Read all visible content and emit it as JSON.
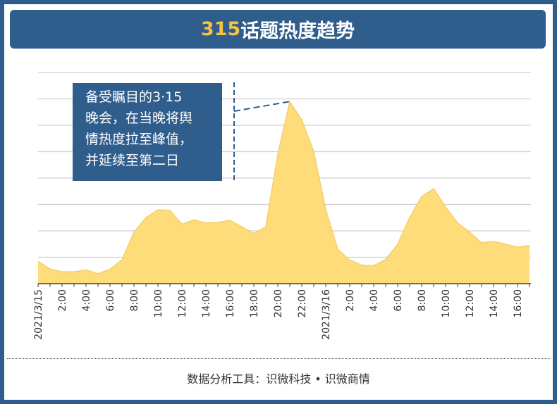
{
  "header": {
    "title_number": "315",
    "title_text": "话题热度趋势"
  },
  "annotation": {
    "lines": [
      "备受瞩目的3·15",
      "晚会，在当晚将舆",
      "情热度拉至峰值，",
      "并延续至第二日"
    ]
  },
  "footer": {
    "source": "数据分析工具：识微科技 • 识微商情"
  },
  "colors": {
    "frame": "#2f5d8c",
    "title_accent": "#f5c242",
    "area_fill": "#ffdc7a",
    "grid": "#d0d0d0",
    "dashed_line": "#2f5d8c"
  },
  "chart_data": {
    "type": "area",
    "title": "315话题热度趋势",
    "xlabel": "",
    "ylabel": "",
    "ylim": [
      0,
      8
    ],
    "grid": true,
    "legend": "none",
    "x": [
      "2021/3/15 0:00",
      "1:00",
      "2:00",
      "3:00",
      "4:00",
      "5:00",
      "6:00",
      "7:00",
      "8:00",
      "9:00",
      "10:00",
      "11:00",
      "12:00",
      "13:00",
      "14:00",
      "15:00",
      "16:00",
      "17:00",
      "18:00",
      "19:00",
      "20:00",
      "21:00",
      "22:00",
      "23:00",
      "2021/3/16 0:00",
      "1:00",
      "2:00",
      "3:00",
      "4:00",
      "5:00",
      "6:00",
      "7:00",
      "8:00",
      "9:00",
      "10:00",
      "11:00",
      "12:00",
      "13:00",
      "14:00",
      "15:00",
      "16:00",
      "17:00"
    ],
    "values": [
      0.85,
      0.55,
      0.45,
      0.45,
      0.52,
      0.38,
      0.55,
      0.9,
      1.95,
      2.5,
      2.8,
      2.78,
      2.25,
      2.42,
      2.3,
      2.32,
      2.4,
      2.15,
      1.9,
      2.15,
      4.9,
      6.9,
      6.2,
      5.0,
      2.8,
      1.3,
      0.9,
      0.7,
      0.68,
      0.92,
      1.5,
      2.5,
      3.3,
      3.6,
      2.9,
      2.3,
      1.95,
      1.55,
      1.6,
      1.5,
      1.38,
      1.45
    ],
    "tick_labels": [
      {
        "index": 0,
        "label": "2021/3/15"
      },
      {
        "index": 2,
        "label": "2:00"
      },
      {
        "index": 4,
        "label": "4:00"
      },
      {
        "index": 6,
        "label": "6:00"
      },
      {
        "index": 8,
        "label": "8:00"
      },
      {
        "index": 10,
        "label": "10:00"
      },
      {
        "index": 12,
        "label": "12:00"
      },
      {
        "index": 14,
        "label": "14:00"
      },
      {
        "index": 16,
        "label": "16:00"
      },
      {
        "index": 18,
        "label": "18:00"
      },
      {
        "index": 20,
        "label": "20:00"
      },
      {
        "index": 22,
        "label": "22:00"
      },
      {
        "index": 24,
        "label": "2021/3/16"
      },
      {
        "index": 26,
        "label": "2:00"
      },
      {
        "index": 28,
        "label": "4:00"
      },
      {
        "index": 30,
        "label": "6:00"
      },
      {
        "index": 32,
        "label": "8:00"
      },
      {
        "index": 34,
        "label": "10:00"
      },
      {
        "index": 36,
        "label": "12:00"
      },
      {
        "index": 38,
        "label": "14:00"
      },
      {
        "index": 40,
        "label": "16:00"
      }
    ],
    "annotation_peak_index": 21
  }
}
